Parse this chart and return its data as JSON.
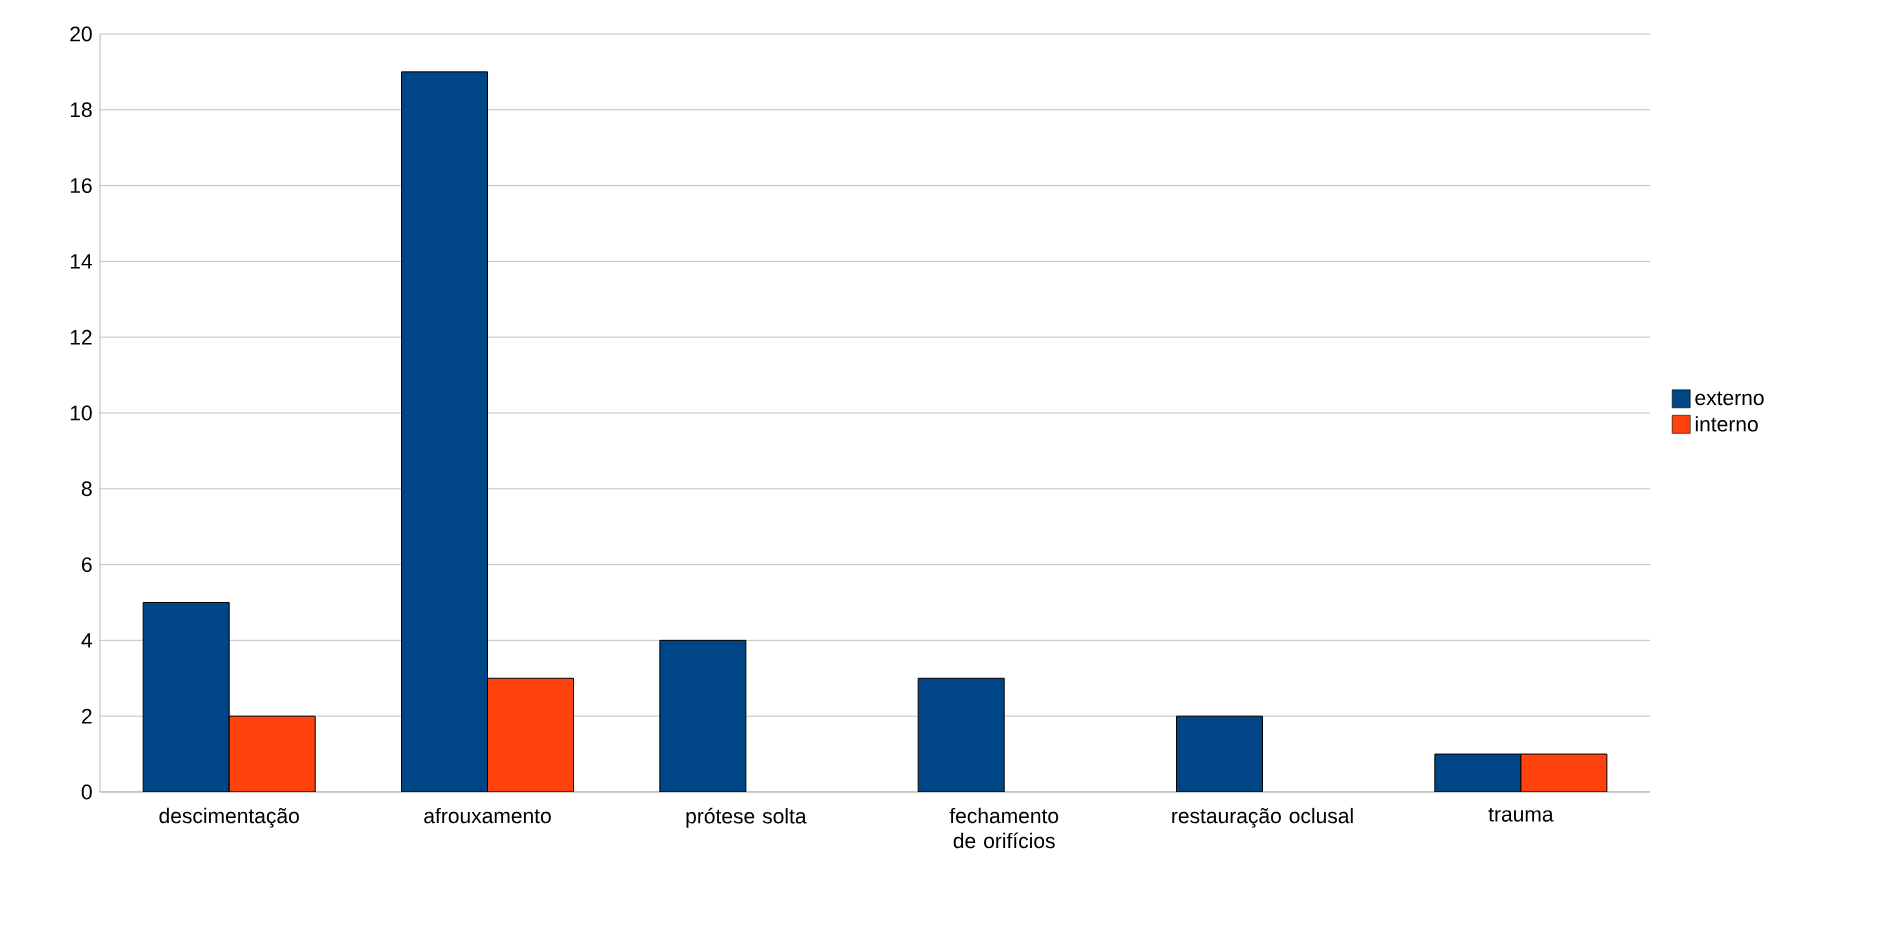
{
  "chart_data": {
    "type": "bar",
    "categories": [
      "descimentação",
      "afrouxamento",
      "prótese solta",
      "fechamento de orifícios",
      "restauração oclusal",
      "trauma"
    ],
    "series": [
      {
        "name": "externo",
        "color": "#004586",
        "values": [
          5,
          19,
          4,
          3,
          2,
          1
        ]
      },
      {
        "name": "interno",
        "color": "#ff420e",
        "values": [
          2,
          3,
          null,
          null,
          null,
          1
        ]
      }
    ],
    "ylim": [
      0,
      20
    ],
    "yticks": [
      0,
      2,
      4,
      6,
      8,
      10,
      12,
      14,
      16,
      18,
      20
    ],
    "grid": "y",
    "legend": "right"
  }
}
